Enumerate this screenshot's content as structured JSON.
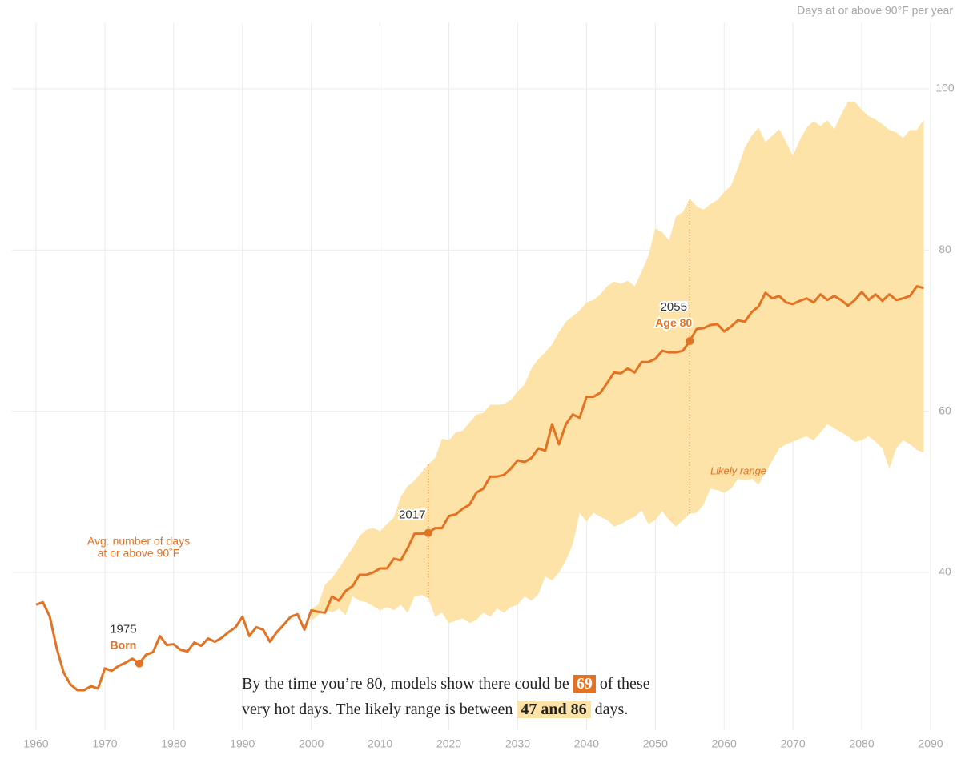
{
  "chart_data": {
    "type": "line",
    "axis_label": "Days at or above 90°F per year",
    "xlim": [
      1960,
      2090
    ],
    "xticks": [
      1960,
      1970,
      1980,
      1990,
      2000,
      2010,
      2020,
      2030,
      2040,
      2050,
      2060,
      2070,
      2080,
      2090
    ],
    "ylim": [
      20,
      108
    ],
    "yticks": [
      40,
      60,
      80,
      100
    ],
    "grid": true,
    "x": [
      1960,
      1961,
      1962,
      1963,
      1964,
      1965,
      1966,
      1967,
      1968,
      1969,
      1970,
      1971,
      1972,
      1973,
      1974,
      1975,
      1976,
      1977,
      1978,
      1979,
      1980,
      1981,
      1982,
      1983,
      1984,
      1985,
      1986,
      1987,
      1988,
      1989,
      1990,
      1991,
      1992,
      1993,
      1994,
      1995,
      1996,
      1997,
      1998,
      1999,
      2000,
      2001,
      2002,
      2003,
      2004,
      2005,
      2006,
      2007,
      2008,
      2009,
      2010,
      2011,
      2012,
      2013,
      2014,
      2015,
      2016,
      2017,
      2018,
      2019,
      2020,
      2021,
      2022,
      2023,
      2024,
      2025,
      2026,
      2027,
      2028,
      2029,
      2030,
      2031,
      2032,
      2033,
      2034,
      2035,
      2036,
      2037,
      2038,
      2039,
      2040,
      2041,
      2042,
      2043,
      2044,
      2045,
      2046,
      2047,
      2048,
      2049,
      2050,
      2051,
      2052,
      2053,
      2054,
      2055,
      2056,
      2057,
      2058,
      2059,
      2060,
      2061,
      2062,
      2063,
      2064,
      2065,
      2066,
      2067,
      2068,
      2069,
      2070,
      2071,
      2072,
      2073,
      2074,
      2075,
      2076,
      2077,
      2078,
      2079,
      2080,
      2081,
      2082,
      2083,
      2084,
      2085,
      2086,
      2087,
      2088,
      2089
    ],
    "series": [
      {
        "label_lines": [
          "Avg. number of days",
          "at or above 90˚F"
        ],
        "color": "#e37222",
        "values": [
          36.0,
          36.3,
          34.5,
          30.6,
          27.6,
          26.1,
          25.4,
          25.4,
          25.9,
          25.6,
          28.1,
          27.8,
          28.4,
          28.8,
          29.3,
          28.7,
          29.8,
          30.1,
          32.1,
          31.0,
          31.1,
          30.4,
          30.2,
          31.3,
          30.9,
          31.8,
          31.4,
          31.9,
          32.6,
          33.2,
          34.5,
          32.1,
          33.2,
          32.9,
          31.4,
          32.6,
          33.5,
          34.5,
          34.8,
          32.9,
          35.3,
          35.1,
          35.0,
          37.0,
          36.5,
          37.7,
          38.3,
          39.7,
          39.7,
          40.0,
          40.5,
          40.5,
          41.7,
          41.5,
          43.0,
          44.8,
          44.8,
          44.9,
          45.5,
          45.5,
          47.0,
          47.2,
          47.9,
          48.4,
          49.9,
          50.4,
          51.9,
          51.9,
          52.1,
          52.9,
          53.9,
          53.7,
          54.2,
          55.4,
          55.1,
          58.4,
          55.9,
          58.4,
          59.6,
          59.2,
          61.8,
          61.8,
          62.3,
          63.5,
          64.8,
          64.7,
          65.3,
          64.8,
          66.1,
          66.1,
          66.5,
          67.5,
          67.3,
          67.3,
          67.5,
          68.7,
          70.2,
          70.3,
          70.7,
          70.8,
          69.9,
          70.5,
          71.3,
          71.1,
          72.3,
          73.0,
          74.7,
          74.0,
          74.3,
          73.5,
          73.3,
          73.7,
          74.0,
          73.5,
          74.5,
          73.8,
          74.3,
          73.8,
          73.1,
          73.8,
          74.8,
          73.8,
          74.5,
          73.7,
          74.5,
          73.8,
          74.0,
          74.3,
          75.5,
          75.3
        ]
      }
    ],
    "range": {
      "name": "Likely range",
      "color": "#fde3a7",
      "label_color": "#e37222",
      "x": [
        2000,
        2001,
        2002,
        2003,
        2004,
        2005,
        2006,
        2007,
        2008,
        2009,
        2010,
        2011,
        2012,
        2013,
        2014,
        2015,
        2016,
        2017,
        2018,
        2019,
        2020,
        2021,
        2022,
        2023,
        2024,
        2025,
        2026,
        2027,
        2028,
        2029,
        2030,
        2031,
        2032,
        2033,
        2034,
        2035,
        2036,
        2037,
        2038,
        2039,
        2040,
        2041,
        2042,
        2043,
        2044,
        2045,
        2046,
        2047,
        2048,
        2049,
        2050,
        2051,
        2052,
        2053,
        2054,
        2055,
        2056,
        2057,
        2058,
        2059,
        2060,
        2061,
        2062,
        2063,
        2064,
        2065,
        2066,
        2067,
        2068,
        2069,
        2070,
        2071,
        2072,
        2073,
        2074,
        2075,
        2076,
        2077,
        2078,
        2079,
        2080,
        2081,
        2082,
        2083,
        2084,
        2085,
        2086,
        2087,
        2088,
        2089
      ],
      "upper": [
        35.5,
        36.0,
        38.5,
        39.3,
        40.5,
        41.8,
        43.0,
        44.5,
        45.3,
        45.5,
        45.1,
        46.0,
        46.8,
        49.4,
        50.7,
        51.4,
        52.4,
        53.4,
        54.2,
        56.6,
        56.4,
        57.4,
        57.6,
        58.6,
        59.6,
        59.8,
        60.8,
        60.8,
        60.9,
        61.4,
        62.5,
        63.3,
        65.3,
        66.5,
        67.3,
        68.3,
        69.8,
        71.1,
        71.8,
        72.5,
        73.5,
        73.8,
        74.5,
        75.5,
        76.1,
        75.8,
        76.2,
        75.5,
        77.3,
        79.3,
        82.7,
        82.2,
        81.2,
        84.2,
        84.7,
        86.4,
        85.4,
        85.0,
        85.7,
        86.2,
        87.2,
        88.0,
        90.2,
        92.7,
        94.2,
        95.2,
        93.4,
        94.2,
        95.0,
        93.4,
        91.7,
        93.7,
        95.2,
        96.0,
        95.4,
        96.1,
        95.0,
        96.8,
        98.4,
        98.4,
        97.4,
        96.6,
        96.2,
        95.6,
        94.9,
        94.6,
        93.9,
        94.9,
        94.9,
        96.2
      ],
      "lower": [
        34.0,
        34.7,
        35.5,
        35.0,
        35.5,
        34.7,
        37.0,
        36.5,
        36.3,
        35.8,
        35.3,
        35.7,
        35.3,
        36.0,
        35.0,
        37.0,
        37.2,
        36.8,
        34.5,
        35.0,
        33.7,
        34.0,
        34.3,
        33.7,
        34.1,
        35.0,
        34.5,
        35.5,
        35.0,
        35.7,
        36.0,
        37.0,
        36.5,
        37.3,
        39.5,
        39.0,
        40.0,
        41.5,
        43.5,
        47.4,
        46.3,
        47.4,
        46.9,
        46.5,
        45.7,
        46.0,
        46.5,
        46.9,
        47.7,
        46.0,
        46.5,
        47.6,
        46.5,
        45.7,
        46.5,
        47.3,
        47.4,
        48.4,
        50.4,
        50.2,
        49.9,
        50.4,
        51.6,
        51.4,
        51.6,
        50.9,
        52.4,
        53.9,
        55.4,
        55.9,
        56.2,
        56.6,
        56.9,
        56.4,
        57.4,
        58.4,
        57.9,
        57.4,
        56.9,
        56.2,
        56.4,
        56.9,
        56.2,
        55.4,
        52.9,
        55.4,
        56.4,
        55.9,
        55.2,
        54.9
      ]
    },
    "markers": [
      {
        "x": 1975,
        "note": "Born"
      },
      {
        "x": 2017
      },
      {
        "x": 2055,
        "note": "Age 80"
      }
    ]
  },
  "caption": {
    "line1": {
      "before": "By the time you’re 80, models show there could be",
      "median": "69",
      "after": "of these"
    },
    "line2": {
      "before": "very hot days. The likely range is between",
      "range": "47 and 86",
      "after": "days."
    }
  }
}
